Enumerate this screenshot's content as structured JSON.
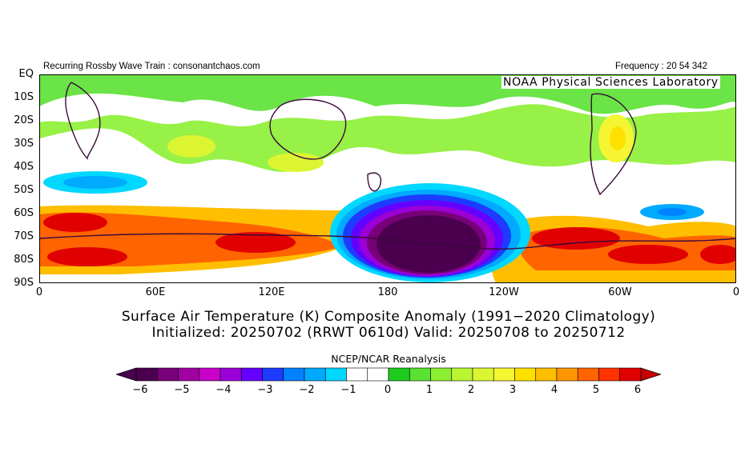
{
  "header": {
    "left_text": "Recurring Rossby Wave Train : consonantchaos.com",
    "right_text": "Frequency : 20 54 342",
    "lab_text": "NOAA  Physical  Sciences  Laboratory"
  },
  "map": {
    "y_labels": [
      "EQ",
      "10S",
      "20S",
      "30S",
      "40S",
      "50S",
      "60S",
      "70S",
      "80S",
      "90S"
    ],
    "x_labels": [
      "0",
      "60E",
      "120E",
      "180",
      "120W",
      "60W",
      "0"
    ],
    "title_line1": "Surface Air Temperature (K) Composite Anomaly (1991−2020 Climatology)",
    "title_line2": "Initialized: 20250702 (RRWT 0610d) Valid: 20250708 to 20250712",
    "source": "NCEP/NCAR Reanalysis"
  },
  "colorbar": {
    "labels": [
      "−6",
      "−5",
      "−4",
      "−3",
      "−2",
      "−1",
      "0",
      "1",
      "2",
      "3",
      "4",
      "5",
      "6"
    ],
    "colors": [
      "#4a004f",
      "#780078",
      "#a000a0",
      "#c800c8",
      "#9b00d6",
      "#6400ff",
      "#1e3cff",
      "#0082ff",
      "#00aaff",
      "#00d8ff",
      "#ffffff",
      "#ffffff",
      "#1ecc1e",
      "#5ae132",
      "#8cef32",
      "#b9f532",
      "#dcf532",
      "#f5f532",
      "#ffe100",
      "#ffbe00",
      "#ff9600",
      "#ff6400",
      "#ff3200",
      "#e10000"
    ],
    "min_color": "#4a004f",
    "max_color": "#c80000"
  }
}
